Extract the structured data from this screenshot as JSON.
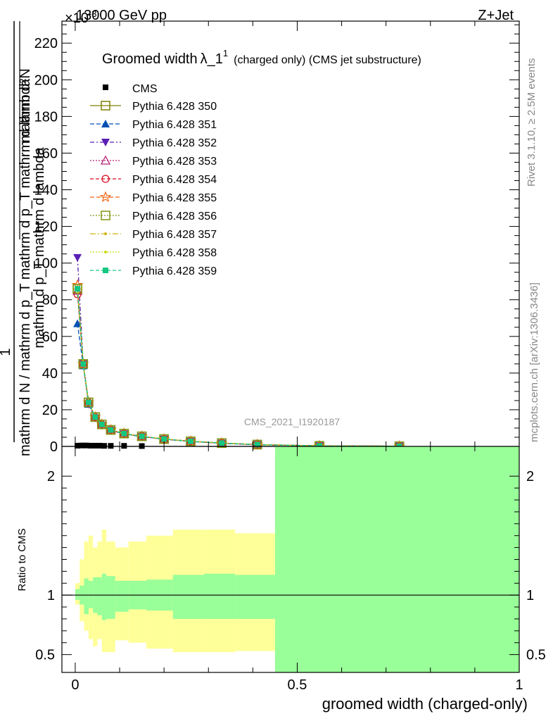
{
  "header": {
    "energy_label": "13000 GeV pp",
    "process_label": "Z+Jet",
    "exponent_label": "×10",
    "exponent_power": "-3",
    "side_label_rivet": "Rivet 3.1.10, ≥ 2.5M events",
    "side_label_mcplots": "mcplots.cern.ch [arXiv:1306.3436]",
    "watermark": "CMS_2021_I1920187"
  },
  "chart_data": [
    {
      "type": "line",
      "title": "Groomed width",
      "title_symbol": "λ_1",
      "title_sup": "1",
      "title_note": "(charged only) (CMS jet substructure)",
      "ylabel_top": "mathrm d²N",
      "ylabel_bottom": "mathrm d N / mathrm d p_T mathrm d p_T mathrm d lambda",
      "ylabel_one": "1",
      "ylabel_fraction_top": "mathrm d²N",
      "ylabel_fraction_bottom": "mathrm d p_T mathrm d lambda",
      "ylim": [
        0,
        232
      ],
      "xlim": [
        -0.03,
        1.0
      ],
      "y_ticks": [
        0,
        20,
        40,
        60,
        80,
        100,
        120,
        140,
        160,
        180,
        200,
        220
      ],
      "legend": "top-left",
      "cms_points": {
        "name": "CMS",
        "x": [
          0.005,
          0.015,
          0.025,
          0.035,
          0.045,
          0.055,
          0.065,
          0.08,
          0.11,
          0.15
        ],
        "y": [
          0.4,
          0.5,
          0.5,
          0.4,
          0.4,
          0.4,
          0.3,
          0.3,
          0.3,
          0.2
        ]
      },
      "x": [
        0.005,
        0.018,
        0.03,
        0.045,
        0.06,
        0.08,
        0.11,
        0.15,
        0.2,
        0.26,
        0.33,
        0.41,
        0.55,
        0.73
      ],
      "series": [
        {
          "name": "Pythia 6.428 350",
          "color": "#808000",
          "marker": "open-square",
          "dash": "",
          "values": [
            86,
            45,
            24,
            16,
            12,
            9,
            7,
            5.5,
            4,
            2.8,
            1.8,
            1.0,
            0.3,
            0.1
          ]
        },
        {
          "name": "Pythia 6.428 351",
          "color": "#0050b4",
          "marker": "filled-triangle-up",
          "dash": "6,3",
          "values": [
            67,
            44,
            23,
            15.5,
            11.5,
            8.8,
            6.8,
            5.3,
            3.9,
            2.7,
            1.7,
            0.9,
            0.3,
            0.1
          ]
        },
        {
          "name": "Pythia 6.428 352",
          "color": "#5a1eb4",
          "marker": "filled-triangle-down",
          "dash": "6,3,2,3",
          "values": [
            103,
            45,
            23,
            15.5,
            11.5,
            8.8,
            6.8,
            5.3,
            3.9,
            2.7,
            1.7,
            0.9,
            0.3,
            0.1
          ]
        },
        {
          "name": "Pythia 6.428 353",
          "color": "#b41e78",
          "marker": "open-triangle-up",
          "dash": "2,2",
          "values": [
            85,
            45,
            24,
            16,
            12,
            9,
            7,
            5.5,
            4,
            2.8,
            1.8,
            1.0,
            0.3,
            0.1
          ]
        },
        {
          "name": "Pythia 6.428 354",
          "color": "#dc0a1e",
          "marker": "open-circle",
          "dash": "5,3",
          "values": [
            83,
            45,
            24,
            16,
            12,
            9,
            7,
            5.5,
            4,
            2.8,
            1.8,
            1.0,
            0.3,
            0.1
          ]
        },
        {
          "name": "Pythia 6.428 355",
          "color": "#f06414",
          "marker": "open-star",
          "dash": "6,3",
          "values": [
            88,
            45,
            24,
            16,
            12,
            9,
            7,
            5.5,
            4,
            2.8,
            1.8,
            1.0,
            0.3,
            0.1
          ]
        },
        {
          "name": "Pythia 6.428 356",
          "color": "#829614",
          "marker": "open-square",
          "dash": "2,2",
          "values": [
            86,
            45,
            24,
            16,
            12,
            9,
            7,
            5.5,
            4,
            2.8,
            1.8,
            1.0,
            0.3,
            0.1
          ]
        },
        {
          "name": "Pythia 6.428 357",
          "color": "#d2b40a",
          "marker": "small-dot",
          "dash": "8,3,2,3",
          "values": [
            86,
            45,
            24,
            16,
            12,
            9,
            7,
            5.5,
            4,
            2.8,
            1.8,
            1.0,
            0.3,
            0.1
          ]
        },
        {
          "name": "Pythia 6.428 358",
          "color": "#c8dc0a",
          "marker": "small-dot",
          "dash": "2,2",
          "values": [
            86,
            45,
            24,
            16,
            12,
            9,
            7,
            5.5,
            4,
            2.8,
            1.8,
            1.0,
            0.3,
            0.1
          ]
        },
        {
          "name": "Pythia 6.428 359",
          "color": "#14c882",
          "marker": "filled-square",
          "dash": "5,3",
          "values": [
            86,
            45,
            24,
            16,
            12,
            9,
            7,
            5.5,
            4,
            2.8,
            1.8,
            1.0,
            0.3,
            0.1
          ]
        }
      ]
    },
    {
      "type": "area",
      "ylabel": "Ratio to CMS",
      "xlabel": "groomed width (charged-only)",
      "ylim": [
        0.35,
        2.25
      ],
      "xlim": [
        -0.03,
        1.0
      ],
      "y_ticks": [
        0.5,
        1,
        2
      ],
      "x_ticks": [
        0,
        0.5,
        1
      ],
      "x_tick_labels": [
        "0",
        "0.5",
        "1"
      ],
      "reference_line": 1,
      "colors": {
        "stat": "#99ff99",
        "syst": "#ffff99",
        "line": "#000000"
      },
      "bins": [
        {
          "x0": 0.0,
          "x1": 0.01,
          "stat_lo": 0.96,
          "stat_hi": 1.05,
          "tot_lo": 0.92,
          "tot_hi": 1.1
        },
        {
          "x0": 0.01,
          "x1": 0.02,
          "stat_lo": 0.92,
          "stat_hi": 1.08,
          "tot_lo": 0.78,
          "tot_hi": 1.3
        },
        {
          "x0": 0.02,
          "x1": 0.03,
          "stat_lo": 0.84,
          "stat_hi": 1.14,
          "tot_lo": 0.7,
          "tot_hi": 1.45
        },
        {
          "x0": 0.03,
          "x1": 0.04,
          "stat_lo": 0.89,
          "stat_hi": 1.12,
          "tot_lo": 0.63,
          "tot_hi": 1.5
        },
        {
          "x0": 0.04,
          "x1": 0.05,
          "stat_lo": 0.85,
          "stat_hi": 1.15,
          "tot_lo": 0.57,
          "tot_hi": 1.4
        },
        {
          "x0": 0.05,
          "x1": 0.06,
          "stat_lo": 0.83,
          "stat_hi": 1.15,
          "tot_lo": 0.63,
          "tot_hi": 1.45
        },
        {
          "x0": 0.06,
          "x1": 0.07,
          "stat_lo": 0.79,
          "stat_hi": 1.18,
          "tot_lo": 0.52,
          "tot_hi": 1.55
        },
        {
          "x0": 0.07,
          "x1": 0.09,
          "stat_lo": 0.8,
          "stat_hi": 1.16,
          "tot_lo": 0.52,
          "tot_hi": 1.45
        },
        {
          "x0": 0.09,
          "x1": 0.12,
          "stat_lo": 0.86,
          "stat_hi": 1.12,
          "tot_lo": 0.62,
          "tot_hi": 1.4
        },
        {
          "x0": 0.12,
          "x1": 0.16,
          "stat_lo": 0.88,
          "stat_hi": 1.12,
          "tot_lo": 0.6,
          "tot_hi": 1.45
        },
        {
          "x0": 0.16,
          "x1": 0.22,
          "stat_lo": 0.87,
          "stat_hi": 1.13,
          "tot_lo": 0.55,
          "tot_hi": 1.5
        },
        {
          "x0": 0.22,
          "x1": 0.29,
          "stat_lo": 0.8,
          "stat_hi": 1.17,
          "tot_lo": 0.52,
          "tot_hi": 1.55
        },
        {
          "x0": 0.29,
          "x1": 0.36,
          "stat_lo": 0.8,
          "stat_hi": 1.18,
          "tot_lo": 0.52,
          "tot_hi": 1.55
        },
        {
          "x0": 0.36,
          "x1": 0.45,
          "stat_lo": 0.8,
          "stat_hi": 1.17,
          "tot_lo": 0.53,
          "tot_hi": 1.52
        },
        {
          "x0": 0.45,
          "x1": 1.0,
          "stat_lo": 0.0,
          "stat_hi": 9.99,
          "tot_lo": 0.0,
          "tot_hi": 9.99
        }
      ]
    }
  ]
}
